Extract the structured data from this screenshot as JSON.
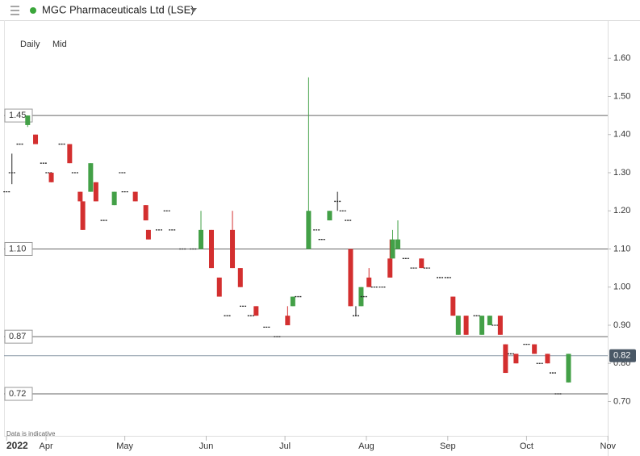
{
  "chart_data": {
    "type": "candlestick",
    "title": "MGC Pharmaceuticals Ltd (LSE)",
    "interval": "Daily",
    "price_type": "Mid",
    "note": "Data is indicative",
    "x": [
      76,
      78,
      81,
      84,
      87,
      90,
      92,
      93,
      97,
      100,
      102,
      104,
      105,
      108,
      110,
      113,
      117,
      120,
      121,
      125,
      129,
      130,
      134,
      137,
      139,
      143,
      147,
      150,
      154,
      157,
      160,
      162,
      165,
      166,
      169,
      171,
      175,
      179,
      183,
      185,
      187,
      191,
      194,
      196,
      199,
      202,
      204,
      206,
      207,
      209,
      211,
      212,
      214,
      216,
      219,
      222,
      223,
      225,
      228,
      231,
      234,
      236,
      241,
      244,
      246,
      248,
      251,
      255,
      257,
      260,
      262,
      264,
      266,
      268,
      270,
      274,
      277,
      279,
      282,
      284,
      286,
      290
    ],
    "open": [
      1.25,
      1.3,
      1.375,
      1.425,
      1.4,
      1.325,
      1.3,
      1.3,
      1.375,
      1.375,
      1.3,
      1.25,
      1.225,
      1.25,
      1.275,
      1.175,
      1.215,
      1.3,
      1.25,
      1.25,
      1.215,
      1.15,
      1.15,
      1.2,
      1.15,
      1.1,
      1.1,
      1.1,
      1.15,
      1.025,
      0.925,
      1.15,
      1.05,
      0.95,
      0.925,
      0.95,
      0.895,
      0.87,
      0.925,
      0.95,
      0.975,
      1.1,
      1.15,
      1.125,
      1.175,
      1.225,
      1.2,
      1.175,
      1.1,
      0.925,
      0.95,
      0.975,
      1.025,
      1.0,
      1.0,
      1.075,
      1.075,
      1.1,
      1.075,
      1.05,
      1.075,
      1.05,
      1.025,
      1.025,
      0.975,
      0.875,
      0.925,
      0.925,
      0.875,
      0.9,
      0.9,
      0.925,
      0.85,
      0.825,
      0.825,
      0.85,
      0.85,
      0.8,
      0.825,
      0.775,
      0.72,
      0.75
    ],
    "high": [
      1.25,
      1.35,
      1.375,
      1.45,
      1.4,
      1.325,
      1.3,
      1.3,
      1.375,
      1.375,
      1.3,
      1.25,
      1.225,
      1.325,
      1.275,
      1.175,
      1.25,
      1.3,
      1.25,
      1.25,
      1.215,
      1.15,
      1.15,
      1.2,
      1.15,
      1.1,
      1.1,
      1.2,
      1.15,
      1.025,
      0.925,
      1.2,
      1.05,
      0.95,
      0.925,
      0.95,
      0.895,
      0.87,
      0.95,
      0.975,
      0.975,
      1.55,
      1.15,
      1.125,
      1.2,
      1.25,
      1.2,
      1.175,
      1.1,
      0.95,
      1.0,
      0.975,
      1.05,
      1.0,
      1.0,
      1.125,
      1.15,
      1.175,
      1.075,
      1.05,
      1.075,
      1.05,
      1.025,
      1.025,
      0.975,
      0.925,
      0.925,
      0.925,
      0.925,
      0.925,
      0.9,
      0.925,
      0.85,
      0.825,
      0.825,
      0.85,
      0.85,
      0.8,
      0.825,
      0.775,
      0.72,
      0.825
    ],
    "low": [
      1.25,
      1.27,
      1.375,
      1.42,
      1.375,
      1.325,
      1.3,
      1.275,
      1.375,
      1.325,
      1.3,
      1.225,
      1.15,
      1.25,
      1.225,
      1.175,
      1.215,
      1.3,
      1.25,
      1.225,
      1.175,
      1.125,
      1.15,
      1.2,
      1.15,
      1.1,
      1.1,
      1.1,
      1.05,
      0.975,
      0.925,
      1.05,
      1.0,
      0.95,
      0.925,
      0.925,
      0.895,
      0.87,
      0.9,
      0.95,
      0.975,
      1.1,
      1.15,
      1.125,
      1.175,
      1.2,
      1.2,
      1.175,
      0.95,
      0.925,
      0.95,
      0.975,
      1.0,
      1.0,
      1.0,
      1.025,
      1.075,
      1.1,
      1.075,
      1.05,
      1.05,
      1.05,
      1.025,
      1.025,
      0.925,
      0.875,
      0.875,
      0.925,
      0.875,
      0.9,
      0.9,
      0.875,
      0.775,
      0.825,
      0.8,
      0.85,
      0.825,
      0.8,
      0.8,
      0.775,
      0.72,
      0.75
    ],
    "close": [
      1.25,
      1.3,
      1.375,
      1.45,
      1.375,
      1.325,
      1.3,
      1.275,
      1.375,
      1.325,
      1.3,
      1.225,
      1.15,
      1.325,
      1.225,
      1.175,
      1.25,
      1.3,
      1.25,
      1.225,
      1.175,
      1.125,
      1.15,
      1.2,
      1.15,
      1.1,
      1.1,
      1.15,
      1.05,
      0.975,
      0.925,
      1.05,
      1.0,
      0.95,
      0.925,
      0.925,
      0.895,
      0.87,
      0.9,
      0.975,
      0.975,
      1.2,
      1.15,
      1.125,
      1.2,
      1.225,
      1.2,
      1.175,
      0.95,
      0.925,
      1.0,
      0.975,
      1.0,
      1.0,
      1.0,
      1.025,
      1.125,
      1.125,
      1.075,
      1.05,
      1.05,
      1.05,
      1.025,
      1.025,
      0.925,
      0.925,
      0.875,
      0.925,
      0.925,
      0.925,
      0.9,
      0.875,
      0.775,
      0.825,
      0.8,
      0.85,
      0.825,
      0.8,
      0.8,
      0.775,
      0.72,
      0.825
    ],
    "up_color": "#43a047",
    "down_color": "#d32f2f",
    "flat_color": "#222222",
    "xlim": [
      75,
      304
    ],
    "xticks": [
      {
        "value": 76,
        "label": "2022"
      },
      {
        "value": 91,
        "label": "Apr"
      },
      {
        "value": 121,
        "label": "May"
      },
      {
        "value": 152,
        "label": "Jun"
      },
      {
        "value": 182,
        "label": "Jul"
      },
      {
        "value": 213,
        "label": "Aug"
      },
      {
        "value": 244,
        "label": "Sep"
      },
      {
        "value": 274,
        "label": "Oct"
      },
      {
        "value": 305,
        "label": "Nov"
      }
    ],
    "ylim": [
      0.61,
      1.7
    ],
    "yticks": [
      {
        "value": 0.7,
        "label": "0.70"
      },
      {
        "value": 0.8,
        "label": "0.80"
      },
      {
        "value": 0.9,
        "label": "0.90"
      },
      {
        "value": 1.0,
        "label": "1.00"
      },
      {
        "value": 1.1,
        "label": "1.10"
      },
      {
        "value": 1.2,
        "label": "1.20"
      },
      {
        "value": 1.3,
        "label": "1.30"
      },
      {
        "value": 1.4,
        "label": "1.40"
      },
      {
        "value": 1.5,
        "label": "1.50"
      },
      {
        "value": 1.6,
        "label": "1.60"
      }
    ],
    "levels": [
      {
        "value": 1.45,
        "label": "1.45"
      },
      {
        "value": 1.1,
        "label": "1.10"
      },
      {
        "value": 0.87,
        "label": "0.87"
      },
      {
        "value": 0.72,
        "label": "0.72"
      }
    ],
    "last_price": {
      "value": 0.82,
      "label": "0.82"
    }
  }
}
